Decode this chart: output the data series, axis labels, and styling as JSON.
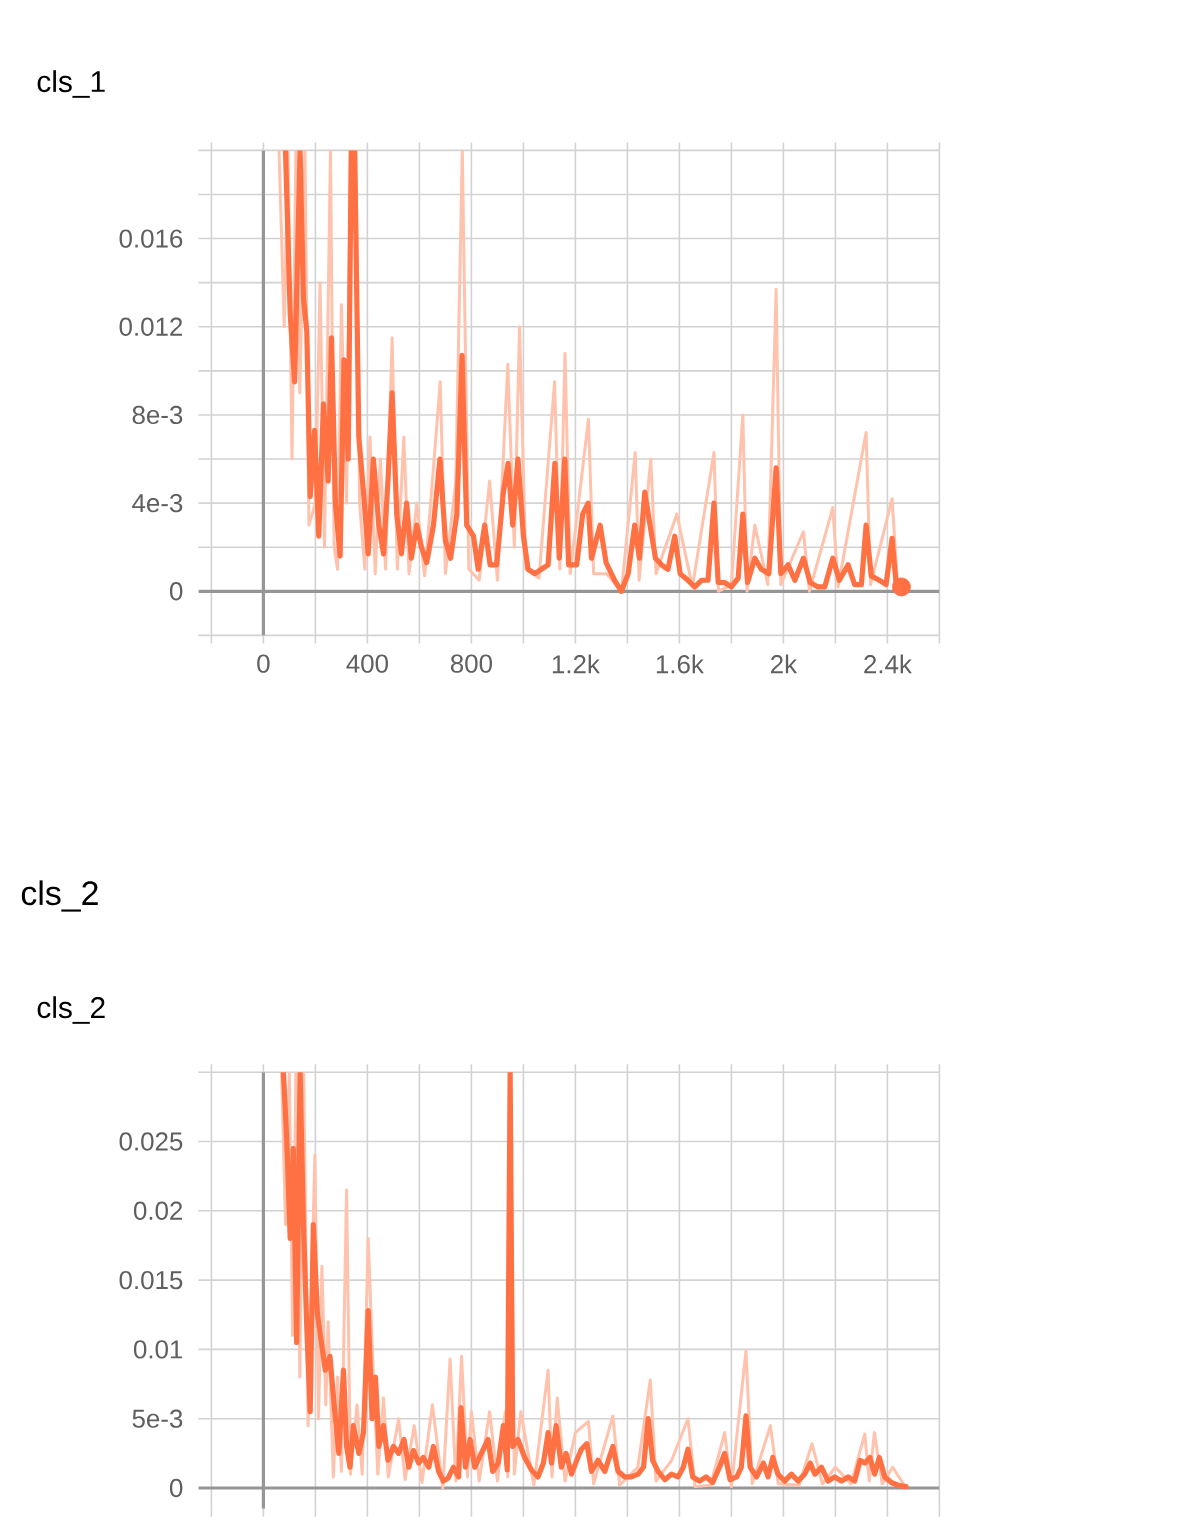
{
  "chart_data": [
    {
      "type": "line",
      "title": "cls_1",
      "xlim": [
        -250,
        2600
      ],
      "ylim": [
        -0.002,
        0.02
      ],
      "xticks": [
        {
          "value": -200,
          "label": null
        },
        0,
        {
          "value": 200,
          "label": null
        },
        400,
        {
          "value": 600,
          "label": null
        },
        800,
        {
          "value": 1000,
          "label": null
        },
        {
          "value": 1200,
          "label": "1.2k"
        },
        {
          "value": 1400,
          "label": null
        },
        {
          "value": 1600,
          "label": "1.6k"
        },
        {
          "value": 1800,
          "label": null
        },
        {
          "value": 2000,
          "label": "2k"
        },
        {
          "value": 2200,
          "label": null
        },
        {
          "value": 2400,
          "label": "2.4k"
        },
        {
          "value": 2600,
          "label": null
        }
      ],
      "yticks": [
        {
          "value": -0.002,
          "label": null
        },
        0,
        {
          "value": 0.002,
          "label": null
        },
        {
          "value": 0.004,
          "label": "4e-3"
        },
        {
          "value": 0.006,
          "label": null
        },
        {
          "value": 0.008,
          "label": "8e-3"
        },
        {
          "value": 0.01,
          "label": null
        },
        0.012,
        {
          "value": 0.014,
          "label": null
        },
        0.016,
        {
          "value": 0.018,
          "label": null
        },
        {
          "value": 0.02,
          "label": null
        }
      ],
      "grid": true,
      "series": [
        {
          "color": "#ffc2ad",
          "x": [
            60,
            80,
            95,
            110,
            125,
            140,
            160,
            175,
            200,
            218,
            235,
            258,
            272,
            285,
            300,
            320,
            335,
            355,
            370,
            390,
            410,
            430,
            450,
            470,
            495,
            515,
            540,
            560,
            590,
            620,
            650,
            680,
            700,
            740,
            765,
            790,
            830,
            870,
            900,
            940,
            965,
            985,
            1010,
            1060,
            1120,
            1140,
            1160,
            1180,
            1250,
            1270,
            1320,
            1377,
            1430,
            1445,
            1490,
            1510,
            1590,
            1650,
            1733,
            1750,
            1800,
            1844,
            1860,
            1890,
            1940,
            1972,
            1990,
            2077,
            2100,
            2190,
            2210,
            2318,
            2335,
            2418,
            2440,
            2454
          ],
          "values": [
            0.02,
            0.012,
            0.02,
            0.006,
            0.02,
            0.009,
            0.02,
            0.003,
            0.004,
            0.014,
            0.002,
            0.02,
            0.002,
            0.001,
            0.013,
            0.004,
            0.02,
            0.02,
            0.004,
            0.001,
            0.007,
            0.0008,
            0.006,
            0.001,
            0.0115,
            0.001,
            0.007,
            0.0008,
            0.004,
            0.0007,
            0.005,
            0.0095,
            0.0008,
            0.005,
            0.02,
            0.001,
            0.0005,
            0.005,
            0.0005,
            0.0103,
            0.002,
            0.012,
            0.001,
            0.0006,
            0.0095,
            0.001,
            0.0108,
            0.0008,
            0.0078,
            0.0008,
            0.0008,
            0,
            0.0063,
            0.0005,
            0.006,
            0.0008,
            0.0035,
            0.0002,
            0.0063,
            0,
            0.0003,
            0.008,
            0,
            0.003,
            0.0003,
            0.0137,
            0.0003,
            0.0027,
            0,
            0.0038,
            0.0002,
            0.0072,
            0.0003,
            0.0042,
            0.0001,
            0.0002
          ]
        },
        {
          "color": "#ff7043",
          "x": [
            85,
            103,
            120,
            141,
            154,
            167,
            180,
            197,
            213,
            231,
            249,
            262,
            277,
            295,
            310,
            326,
            338,
            351,
            367,
            385,
            403,
            423,
            444,
            462,
            479,
            495,
            513,
            531,
            551,
            569,
            590,
            608,
            628,
            654,
            679,
            700,
            720,
            744,
            764,
            782,
            808,
            826,
            851,
            872,
            897,
            923,
            941,
            959,
            979,
            1000,
            1018,
            1044,
            1069,
            1095,
            1121,
            1138,
            1159,
            1174,
            1205,
            1228,
            1249,
            1262,
            1295,
            1318,
            1351,
            1377,
            1403,
            1428,
            1446,
            1467,
            1487,
            1508,
            1531,
            1556,
            1582,
            1603,
            1633,
            1659,
            1685,
            1710,
            1733,
            1749,
            1774,
            1800,
            1826,
            1844,
            1862,
            1890,
            1915,
            1944,
            1972,
            1990,
            2018,
            2044,
            2077,
            2103,
            2133,
            2159,
            2190,
            2215,
            2249,
            2274,
            2300,
            2318,
            2338,
            2369,
            2395,
            2418,
            2433,
            2454
          ],
          "values": [
            0.02,
            0.0126,
            0.0095,
            0.02,
            0.0133,
            0.0118,
            0.0043,
            0.0073,
            0.0025,
            0.0085,
            0.005,
            0.0115,
            0.004,
            0.0016,
            0.0105,
            0.006,
            0.02,
            0.02,
            0.007,
            0.0045,
            0.0017,
            0.006,
            0.003,
            0.0017,
            0.005,
            0.009,
            0.0035,
            0.0017,
            0.004,
            0.0015,
            0.003,
            0.002,
            0.0013,
            0.003,
            0.006,
            0.0023,
            0.0015,
            0.0035,
            0.0107,
            0.003,
            0.0025,
            0.001,
            0.003,
            0.0012,
            0.0012,
            0.0045,
            0.0058,
            0.003,
            0.006,
            0.0025,
            0.001,
            0.0008,
            0.001,
            0.0012,
            0.0058,
            0.0015,
            0.006,
            0.0012,
            0.0012,
            0.0035,
            0.004,
            0.0015,
            0.003,
            0.0013,
            0.0005,
            0,
            0.0008,
            0.003,
            0.0015,
            0.0045,
            0.003,
            0.0015,
            0.0012,
            0.001,
            0.0025,
            0.0008,
            0.0005,
            0.0002,
            0.0005,
            0.0005,
            0.004,
            0.0004,
            0.0004,
            0.0002,
            0.0006,
            0.0035,
            0.0004,
            0.0015,
            0.001,
            0.0008,
            0.0056,
            0.0008,
            0.0012,
            0.0005,
            0.0015,
            0.0004,
            0.0002,
            0.0002,
            0.0015,
            0.0005,
            0.0012,
            0.0003,
            0.0003,
            0.003,
            0.0007,
            0.0005,
            0.0003,
            0.0024,
            0.0004,
            0.0002
          ]
        },
        {
          "type": "scatter",
          "marker": "circle",
          "color": "#ff7043",
          "x": [
            2454
          ],
          "values": [
            0.0002
          ]
        }
      ]
    },
    {
      "type": "other",
      "title": "cls_2"
    },
    {
      "type": "line",
      "title": "cls_2",
      "xlim": [
        -250,
        2600
      ],
      "ylim": [
        -0.0015,
        0.03
      ],
      "xticks": [
        -200,
        0,
        200,
        400,
        600,
        800,
        1000,
        1200,
        1400,
        1600,
        1800,
        2000,
        2200,
        2400,
        2600
      ],
      "yticks": [
        0,
        {
          "value": 0.005,
          "label": "5e-3"
        },
        0.01,
        0.015,
        0.02,
        0.025,
        {
          "value": 0.03,
          "label": null
        }
      ],
      "tick_labels": "y",
      "grid": true,
      "series": [
        {
          "color": "#ffc2ad",
          "x": [
            70,
            85,
            100,
            112,
            125,
            140,
            155,
            172,
            198,
            212,
            225,
            240,
            249,
            269,
            285,
            300,
            320,
            335,
            360,
            380,
            403,
            423,
            440,
            462,
            480,
            520,
            545,
            580,
            610,
            650,
            690,
            718,
            740,
            762,
            785,
            800,
            830,
            870,
            900,
            930,
            940,
            949,
            965,
            990,
            1040,
            1095,
            1110,
            1130,
            1160,
            1200,
            1250,
            1270,
            1344,
            1370,
            1440,
            1488,
            1510,
            1570,
            1633,
            1660,
            1720,
            1774,
            1800,
            1856,
            1880,
            1950,
            1980,
            2060,
            2110,
            2150,
            2200,
            2260,
            2313,
            2330,
            2350,
            2380,
            2420,
            2472
          ],
          "values": [
            0.03,
            0.019,
            0.03,
            0.011,
            0.03,
            0.008,
            0.03,
            0.0045,
            0.024,
            0.005,
            0.016,
            0.006,
            0.012,
            0.0008,
            0.008,
            0.0012,
            0.0215,
            0.001,
            0.006,
            0.001,
            0.018,
            0.008,
            0.001,
            0.0065,
            0.0008,
            0.005,
            0.0006,
            0.0045,
            0.0004,
            0.006,
            0,
            0.0093,
            0.0005,
            0.0095,
            0.0008,
            0.0055,
            0.0005,
            0.0055,
            0.0005,
            0.0055,
            0.0008,
            0.03,
            0.001,
            0.0055,
            0.0002,
            0.0085,
            0.0008,
            0.0065,
            0.0005,
            0.004,
            0.0048,
            0.0003,
            0.0052,
            0.0002,
            0.0015,
            0.0078,
            0.0005,
            0.002,
            0.005,
            0.0001,
            0.0002,
            0.004,
            0.0001,
            0.0099,
            0.0003,
            0.0045,
            0.0003,
            0.0002,
            0.0032,
            0.0003,
            0.0015,
            0.0003,
            0.0039,
            0.0005,
            0.004,
            0.0003,
            0.0015,
            0
          ]
        },
        {
          "color": "#ff7043",
          "x": [
            77,
            90,
            103,
            115,
            128,
            141,
            154,
            167,
            180,
            192,
            208,
            223,
            238,
            256,
            272,
            290,
            308,
            320,
            333,
            346,
            367,
            385,
            403,
            418,
            431,
            444,
            462,
            479,
            500,
            520,
            541,
            559,
            577,
            597,
            615,
            636,
            654,
            674,
            692,
            710,
            731,
            751,
            760,
            777,
            795,
            813,
            838,
            864,
            882,
            903,
            923,
            938,
            949,
            959,
            979,
            1005,
            1031,
            1056,
            1077,
            1095,
            1108,
            1126,
            1146,
            1164,
            1185,
            1205,
            1223,
            1244,
            1262,
            1287,
            1313,
            1344,
            1364,
            1390,
            1415,
            1441,
            1462,
            1480,
            1497,
            1518,
            1544,
            1569,
            1595,
            1615,
            1633,
            1651,
            1677,
            1703,
            1728,
            1754,
            1774,
            1795,
            1821,
            1838,
            1856,
            1872,
            1897,
            1923,
            1941,
            1959,
            1979,
            2005,
            2031,
            2056,
            2082,
            2103,
            2121,
            2146,
            2172,
            2197,
            2223,
            2249,
            2274,
            2295,
            2313,
            2333,
            2351,
            2369,
            2390,
            2415,
            2441,
            2472
          ],
          "values": [
            0.03,
            0.025,
            0.018,
            0.0245,
            0.0105,
            0.03,
            0.019,
            0.0115,
            0.0055,
            0.019,
            0.0125,
            0.0105,
            0.0085,
            0.0095,
            0.006,
            0.0025,
            0.0085,
            0.003,
            0.0015,
            0.0045,
            0.0025,
            0.004,
            0.0128,
            0.005,
            0.008,
            0.003,
            0.0045,
            0.002,
            0.003,
            0.0025,
            0.0035,
            0.0015,
            0.0027,
            0.0018,
            0.0022,
            0.0015,
            0.003,
            0.0012,
            0.0005,
            0.0007,
            0.0015,
            0.0008,
            0.0058,
            0.0015,
            0.0035,
            0.0015,
            0.0025,
            0.0035,
            0.0012,
            0.0018,
            0.0045,
            0.0013,
            0.03,
            0.003,
            0.0035,
            0.0022,
            0.0013,
            0.0008,
            0.0018,
            0.004,
            0.0018,
            0.0045,
            0.0015,
            0.0025,
            0.001,
            0.002,
            0.0028,
            0.0032,
            0.0012,
            0.002,
            0.0012,
            0.003,
            0.0012,
            0.0008,
            0.0008,
            0.001,
            0.0015,
            0.005,
            0.002,
            0.0012,
            0.0006,
            0.001,
            0.0008,
            0.0015,
            0.0028,
            0.0008,
            0.0005,
            0.0008,
            0.0004,
            0.0015,
            0.0025,
            0.0006,
            0.0008,
            0.0015,
            0.0052,
            0.0015,
            0.0008,
            0.0018,
            0.0008,
            0.0022,
            0.001,
            0.0005,
            0.001,
            0.0005,
            0.001,
            0.0018,
            0.001,
            0.0015,
            0.0005,
            0.0008,
            0.0005,
            0.0008,
            0.0005,
            0.002,
            0.0018,
            0.0022,
            0.001,
            0.0022,
            0.0008,
            0.0004,
            0.0002,
            0.0001
          ]
        }
      ]
    }
  ]
}
